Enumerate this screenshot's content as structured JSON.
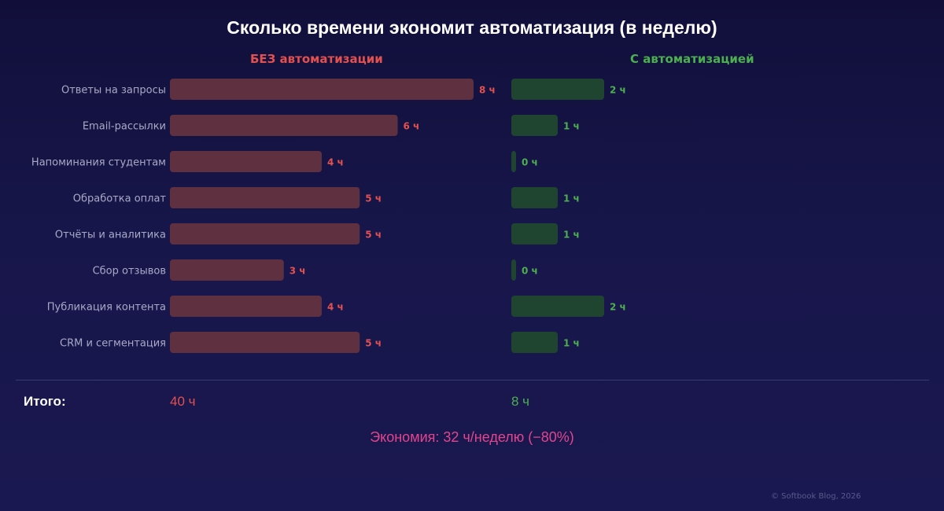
{
  "title": "Сколько времени экономит автоматизация (в неделю)",
  "colors": {
    "without": "#5e3040",
    "with": "#1f4530",
    "without_text": "#e2514f",
    "with_text": "#4caf50",
    "savings": "#e0468c"
  },
  "chart_data": {
    "type": "bar",
    "orientation": "horizontal",
    "title": "Сколько времени экономит автоматизация (в неделю)",
    "categories": [
      "Ответы на запросы",
      "Email-рассылки",
      "Напоминания студентам",
      "Обработка оплат",
      "Отчёты и аналитика",
      "Сбор отзывов",
      "Публикация контента",
      "CRM и сегментация"
    ],
    "series": [
      {
        "name": "БЕЗ автоматизации",
        "values": [
          8,
          6,
          4,
          5,
          5,
          3,
          4,
          5
        ],
        "labels": [
          "8 ч",
          "6 ч",
          "4 ч",
          "5 ч",
          "5 ч",
          "3 ч",
          "4 ч",
          "5 ч"
        ]
      },
      {
        "name": "С автоматизацией",
        "values": [
          2,
          1,
          0,
          1,
          1,
          0,
          2,
          1
        ],
        "labels": [
          "2 ч",
          "1 ч",
          "0 ч",
          "1 ч",
          "1 ч",
          "0 ч",
          "2 ч",
          "1 ч"
        ]
      }
    ],
    "grid": false
  },
  "totals": {
    "label": "Итого:",
    "without": "40 ч",
    "with": "8 ч"
  },
  "savings": "Экономия: 32 ч/неделю (−80%)",
  "footer": "© Softbook Blog, 2026"
}
